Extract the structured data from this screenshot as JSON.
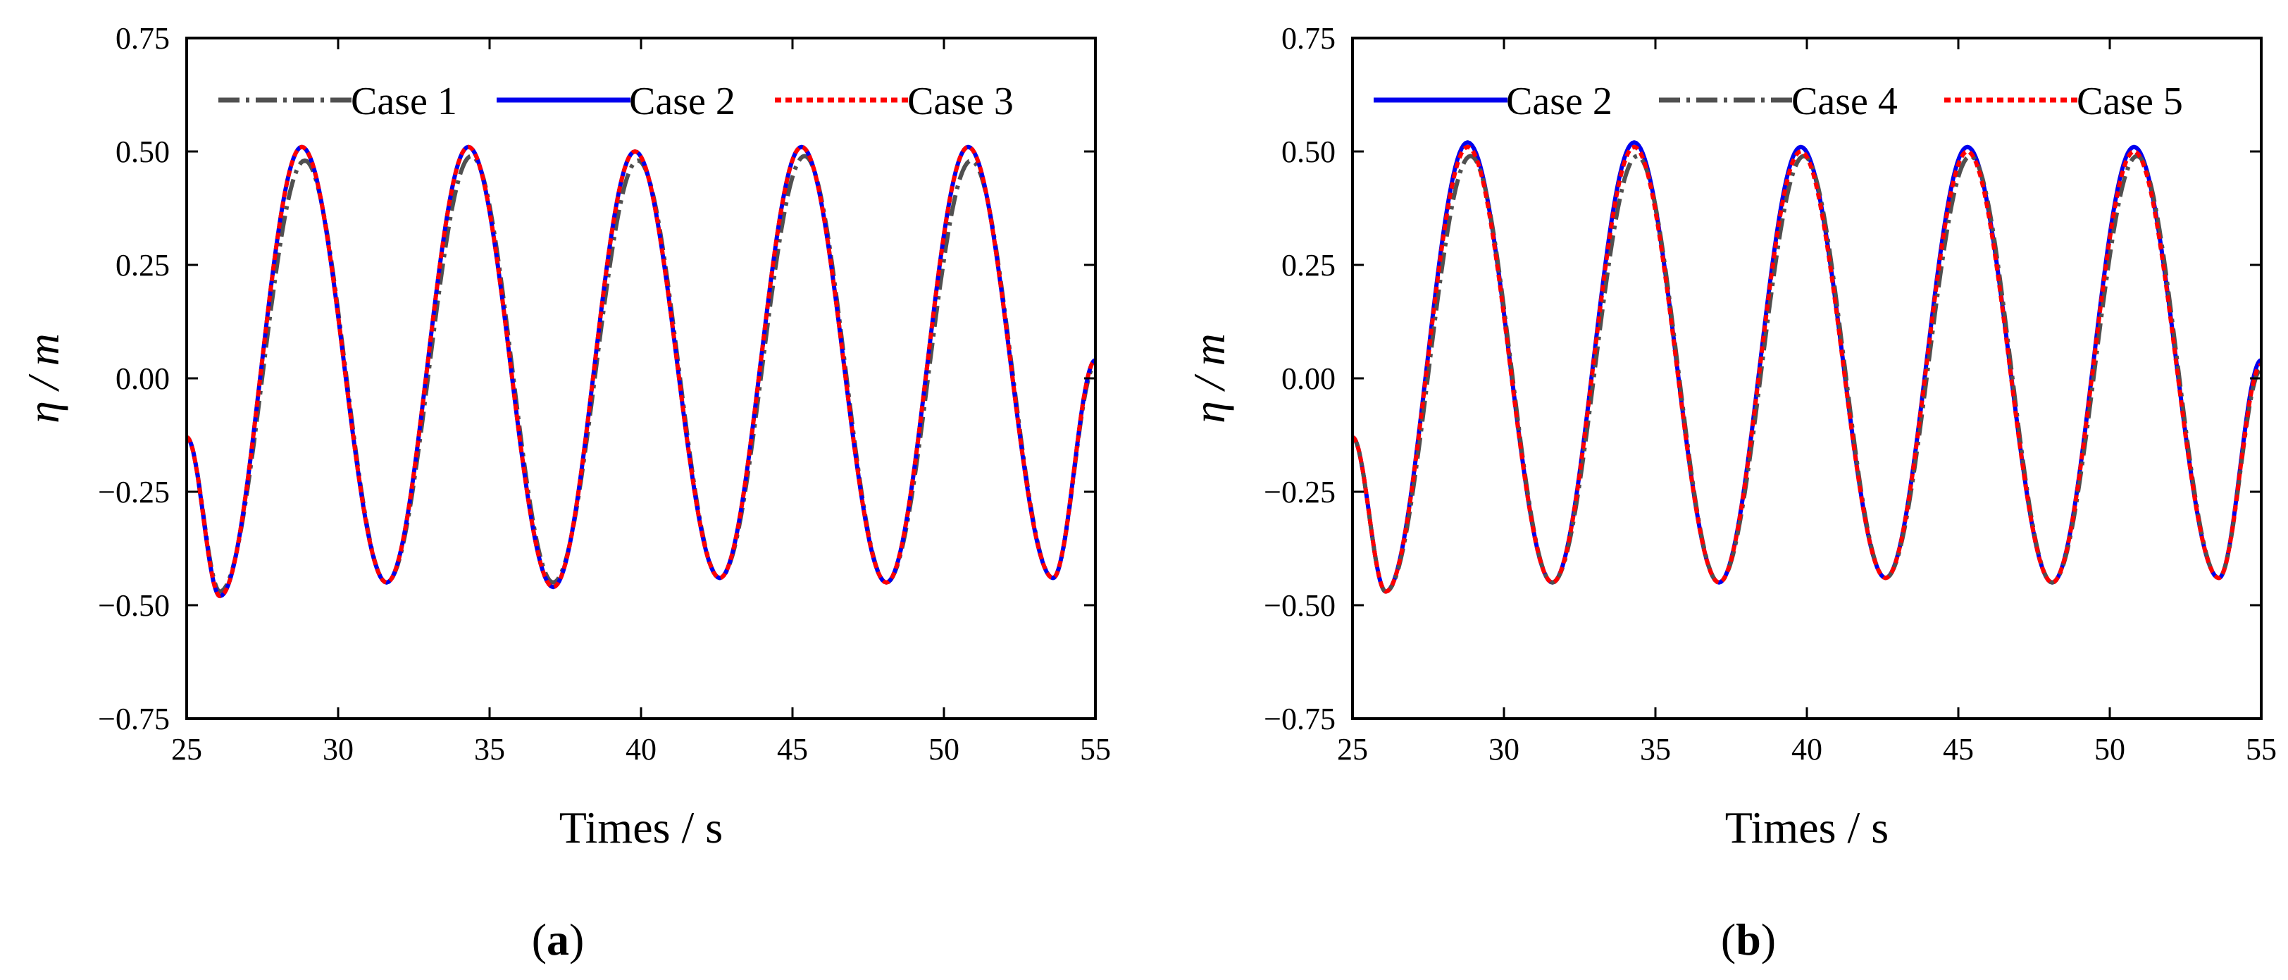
{
  "figure": {
    "panel_labels": [
      {
        "open": "(",
        "letter": "a",
        "close": ")"
      },
      {
        "open": "(",
        "letter": "b",
        "close": ")"
      }
    ]
  },
  "chart_data": [
    {
      "type": "line",
      "xlabel": "Times / s",
      "ylabel": "η / m",
      "xlim": [
        25,
        55
      ],
      "ylim": [
        -0.75,
        0.75
      ],
      "xticks": [
        25,
        30,
        35,
        40,
        45,
        50,
        55
      ],
      "yticks": [
        -0.75,
        -0.5,
        -0.25,
        0.0,
        0.25,
        0.5,
        0.75
      ],
      "ytick_labels": [
        "−0.75",
        "−0.50",
        "−0.25",
        "0.00",
        "0.25",
        "0.50",
        "0.75"
      ],
      "grid": false,
      "legend_position": "top",
      "series": [
        {
          "name": "Case 1",
          "color": "#505050",
          "style": "dashdot",
          "x": [
            25.0,
            26.1,
            28.9,
            31.6,
            34.4,
            37.1,
            39.9,
            42.6,
            45.4,
            48.1,
            50.9,
            53.6,
            55.0
          ],
          "y": [
            -0.13,
            -0.47,
            0.48,
            -0.45,
            0.49,
            -0.45,
            0.48,
            -0.44,
            0.49,
            -0.45,
            0.48,
            -0.44,
            0.03
          ]
        },
        {
          "name": "Case 2",
          "color": "#0000ee",
          "style": "solid",
          "x": [
            25.0,
            26.1,
            28.8,
            31.6,
            34.3,
            37.1,
            39.8,
            42.6,
            45.3,
            48.1,
            50.8,
            53.6,
            55.0
          ],
          "y": [
            -0.13,
            -0.48,
            0.51,
            -0.45,
            0.51,
            -0.46,
            0.5,
            -0.44,
            0.51,
            -0.45,
            0.51,
            -0.44,
            0.04
          ]
        },
        {
          "name": "Case 3",
          "color": "#ff0000",
          "style": "dotted",
          "x": [
            25.0,
            26.1,
            28.8,
            31.6,
            34.3,
            37.1,
            39.8,
            42.6,
            45.3,
            48.1,
            50.8,
            53.6,
            55.0
          ],
          "y": [
            -0.13,
            -0.48,
            0.51,
            -0.45,
            0.51,
            -0.46,
            0.5,
            -0.44,
            0.51,
            -0.45,
            0.51,
            -0.44,
            0.04
          ]
        }
      ]
    },
    {
      "type": "line",
      "xlabel": "Times / s",
      "ylabel": "η / m",
      "xlim": [
        25,
        55
      ],
      "ylim": [
        -0.75,
        0.75
      ],
      "xticks": [
        25,
        30,
        35,
        40,
        45,
        50,
        55
      ],
      "yticks": [
        -0.75,
        -0.5,
        -0.25,
        0.0,
        0.25,
        0.5,
        0.75
      ],
      "ytick_labels": [
        "−0.75",
        "−0.50",
        "−0.25",
        "0.00",
        "0.25",
        "0.50",
        "0.75"
      ],
      "grid": false,
      "legend_position": "top",
      "series": [
        {
          "name": "Case 2",
          "color": "#0000ee",
          "style": "solid",
          "x": [
            25.0,
            26.1,
            28.8,
            31.6,
            34.3,
            37.1,
            39.8,
            42.6,
            45.3,
            48.1,
            50.8,
            53.6,
            55.0
          ],
          "y": [
            -0.13,
            -0.47,
            0.52,
            -0.45,
            0.52,
            -0.45,
            0.51,
            -0.44,
            0.51,
            -0.45,
            0.51,
            -0.44,
            0.04
          ]
        },
        {
          "name": "Case 4",
          "color": "#505050",
          "style": "dashdot",
          "x": [
            25.0,
            26.1,
            28.9,
            31.6,
            34.4,
            37.1,
            39.9,
            42.6,
            45.4,
            48.1,
            50.9,
            53.6,
            55.0
          ],
          "y": [
            -0.13,
            -0.47,
            0.49,
            -0.45,
            0.49,
            -0.45,
            0.49,
            -0.44,
            0.49,
            -0.45,
            0.49,
            -0.44,
            0.02
          ]
        },
        {
          "name": "Case 5",
          "color": "#ff0000",
          "style": "dotted",
          "x": [
            25.0,
            26.1,
            28.8,
            31.6,
            34.3,
            37.1,
            39.8,
            42.6,
            45.3,
            48.1,
            50.8,
            53.6,
            55.0
          ],
          "y": [
            -0.13,
            -0.47,
            0.51,
            -0.45,
            0.51,
            -0.45,
            0.5,
            -0.44,
            0.5,
            -0.45,
            0.5,
            -0.44,
            0.03
          ]
        }
      ]
    }
  ]
}
